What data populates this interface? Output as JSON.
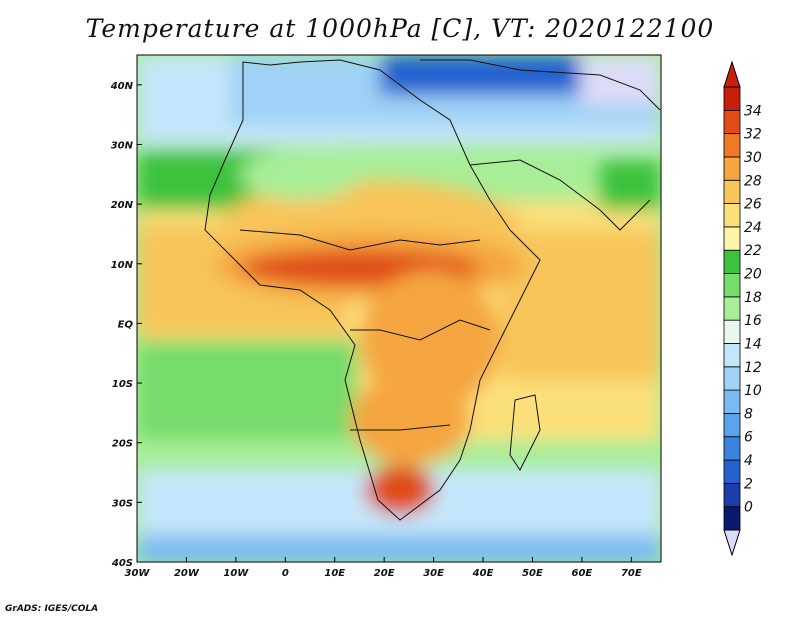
{
  "title": "Temperature at 1000hPa [C], VT: 2020122100",
  "credit": "GrADS: IGES/COLA",
  "map": {
    "lon_range": [
      -30,
      76
    ],
    "lat_range": [
      -40,
      45
    ],
    "lon_ticks": [
      {
        "value": -30,
        "label": "30W"
      },
      {
        "value": -20,
        "label": "20W"
      },
      {
        "value": -10,
        "label": "10W"
      },
      {
        "value": 0,
        "label": "0"
      },
      {
        "value": 10,
        "label": "10E"
      },
      {
        "value": 20,
        "label": "20E"
      },
      {
        "value": 30,
        "label": "30E"
      },
      {
        "value": 40,
        "label": "40E"
      },
      {
        "value": 50,
        "label": "50E"
      },
      {
        "value": 60,
        "label": "60E"
      },
      {
        "value": 70,
        "label": "70E"
      }
    ],
    "lat_ticks": [
      {
        "value": 40,
        "label": "40N"
      },
      {
        "value": 30,
        "label": "30N"
      },
      {
        "value": 20,
        "label": "20N"
      },
      {
        "value": 10,
        "label": "10N"
      },
      {
        "value": 0,
        "label": "EQ"
      },
      {
        "value": -10,
        "label": "10S"
      },
      {
        "value": -20,
        "label": "20S"
      },
      {
        "value": -30,
        "label": "30S"
      },
      {
        "value": -40,
        "label": "40S"
      }
    ]
  },
  "colorbar": {
    "levels": [
      0,
      2,
      4,
      6,
      8,
      10,
      12,
      14,
      16,
      18,
      20,
      22,
      24,
      26,
      28,
      30,
      32,
      34
    ],
    "colors": [
      "#0b1a6e",
      "#1a3fa8",
      "#2462cf",
      "#3a84e0",
      "#5aa2ea",
      "#7bbcf0",
      "#9fd2f6",
      "#c4e6fa",
      "#e8f8ee",
      "#a8ee98",
      "#76dc6a",
      "#3cc23c",
      "#fff5a8",
      "#fbe07a",
      "#f8c55a",
      "#f5a640",
      "#f07a28",
      "#e04e14",
      "#c81e0a"
    ],
    "below_color": "#dcdcf8",
    "above_color": "#c81e0a"
  }
}
